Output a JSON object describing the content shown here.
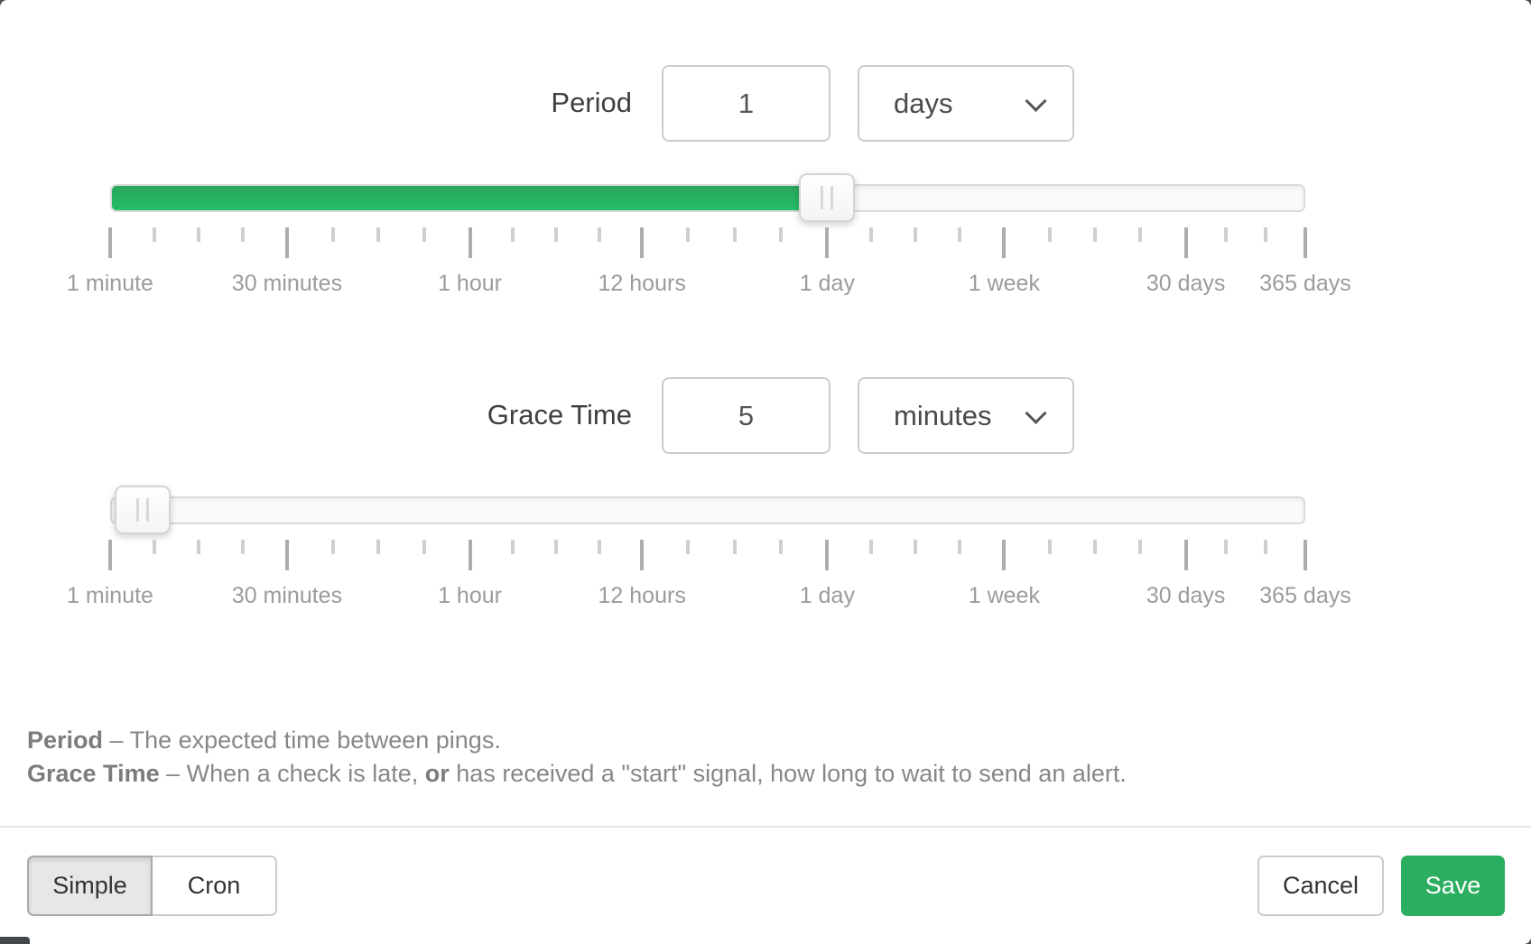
{
  "period": {
    "label": "Period",
    "value": "1",
    "unit": "days"
  },
  "grace": {
    "label": "Grace Time",
    "value": "5",
    "unit": "minutes"
  },
  "scale_labels": [
    "1 minute",
    "30 minutes",
    "1 hour",
    "12 hours",
    "1 day",
    "1 week",
    "30 days",
    "365 days"
  ],
  "help": {
    "period_term": "Period",
    "period_text": "– The expected time between pings.",
    "grace_term": "Grace Time",
    "grace_text_1": "– When a check is late,",
    "grace_bold": "or",
    "grace_text_2": "has received a \"start\" signal, how long to wait to send an alert."
  },
  "footer": {
    "simple": "Simple",
    "cron": "Cron",
    "cancel": "Cancel",
    "save": "Save"
  },
  "colors": {
    "slider_green_top": "#2aa75c",
    "slider_green_bottom": "#25bd67",
    "save_green": "#2bae60"
  }
}
